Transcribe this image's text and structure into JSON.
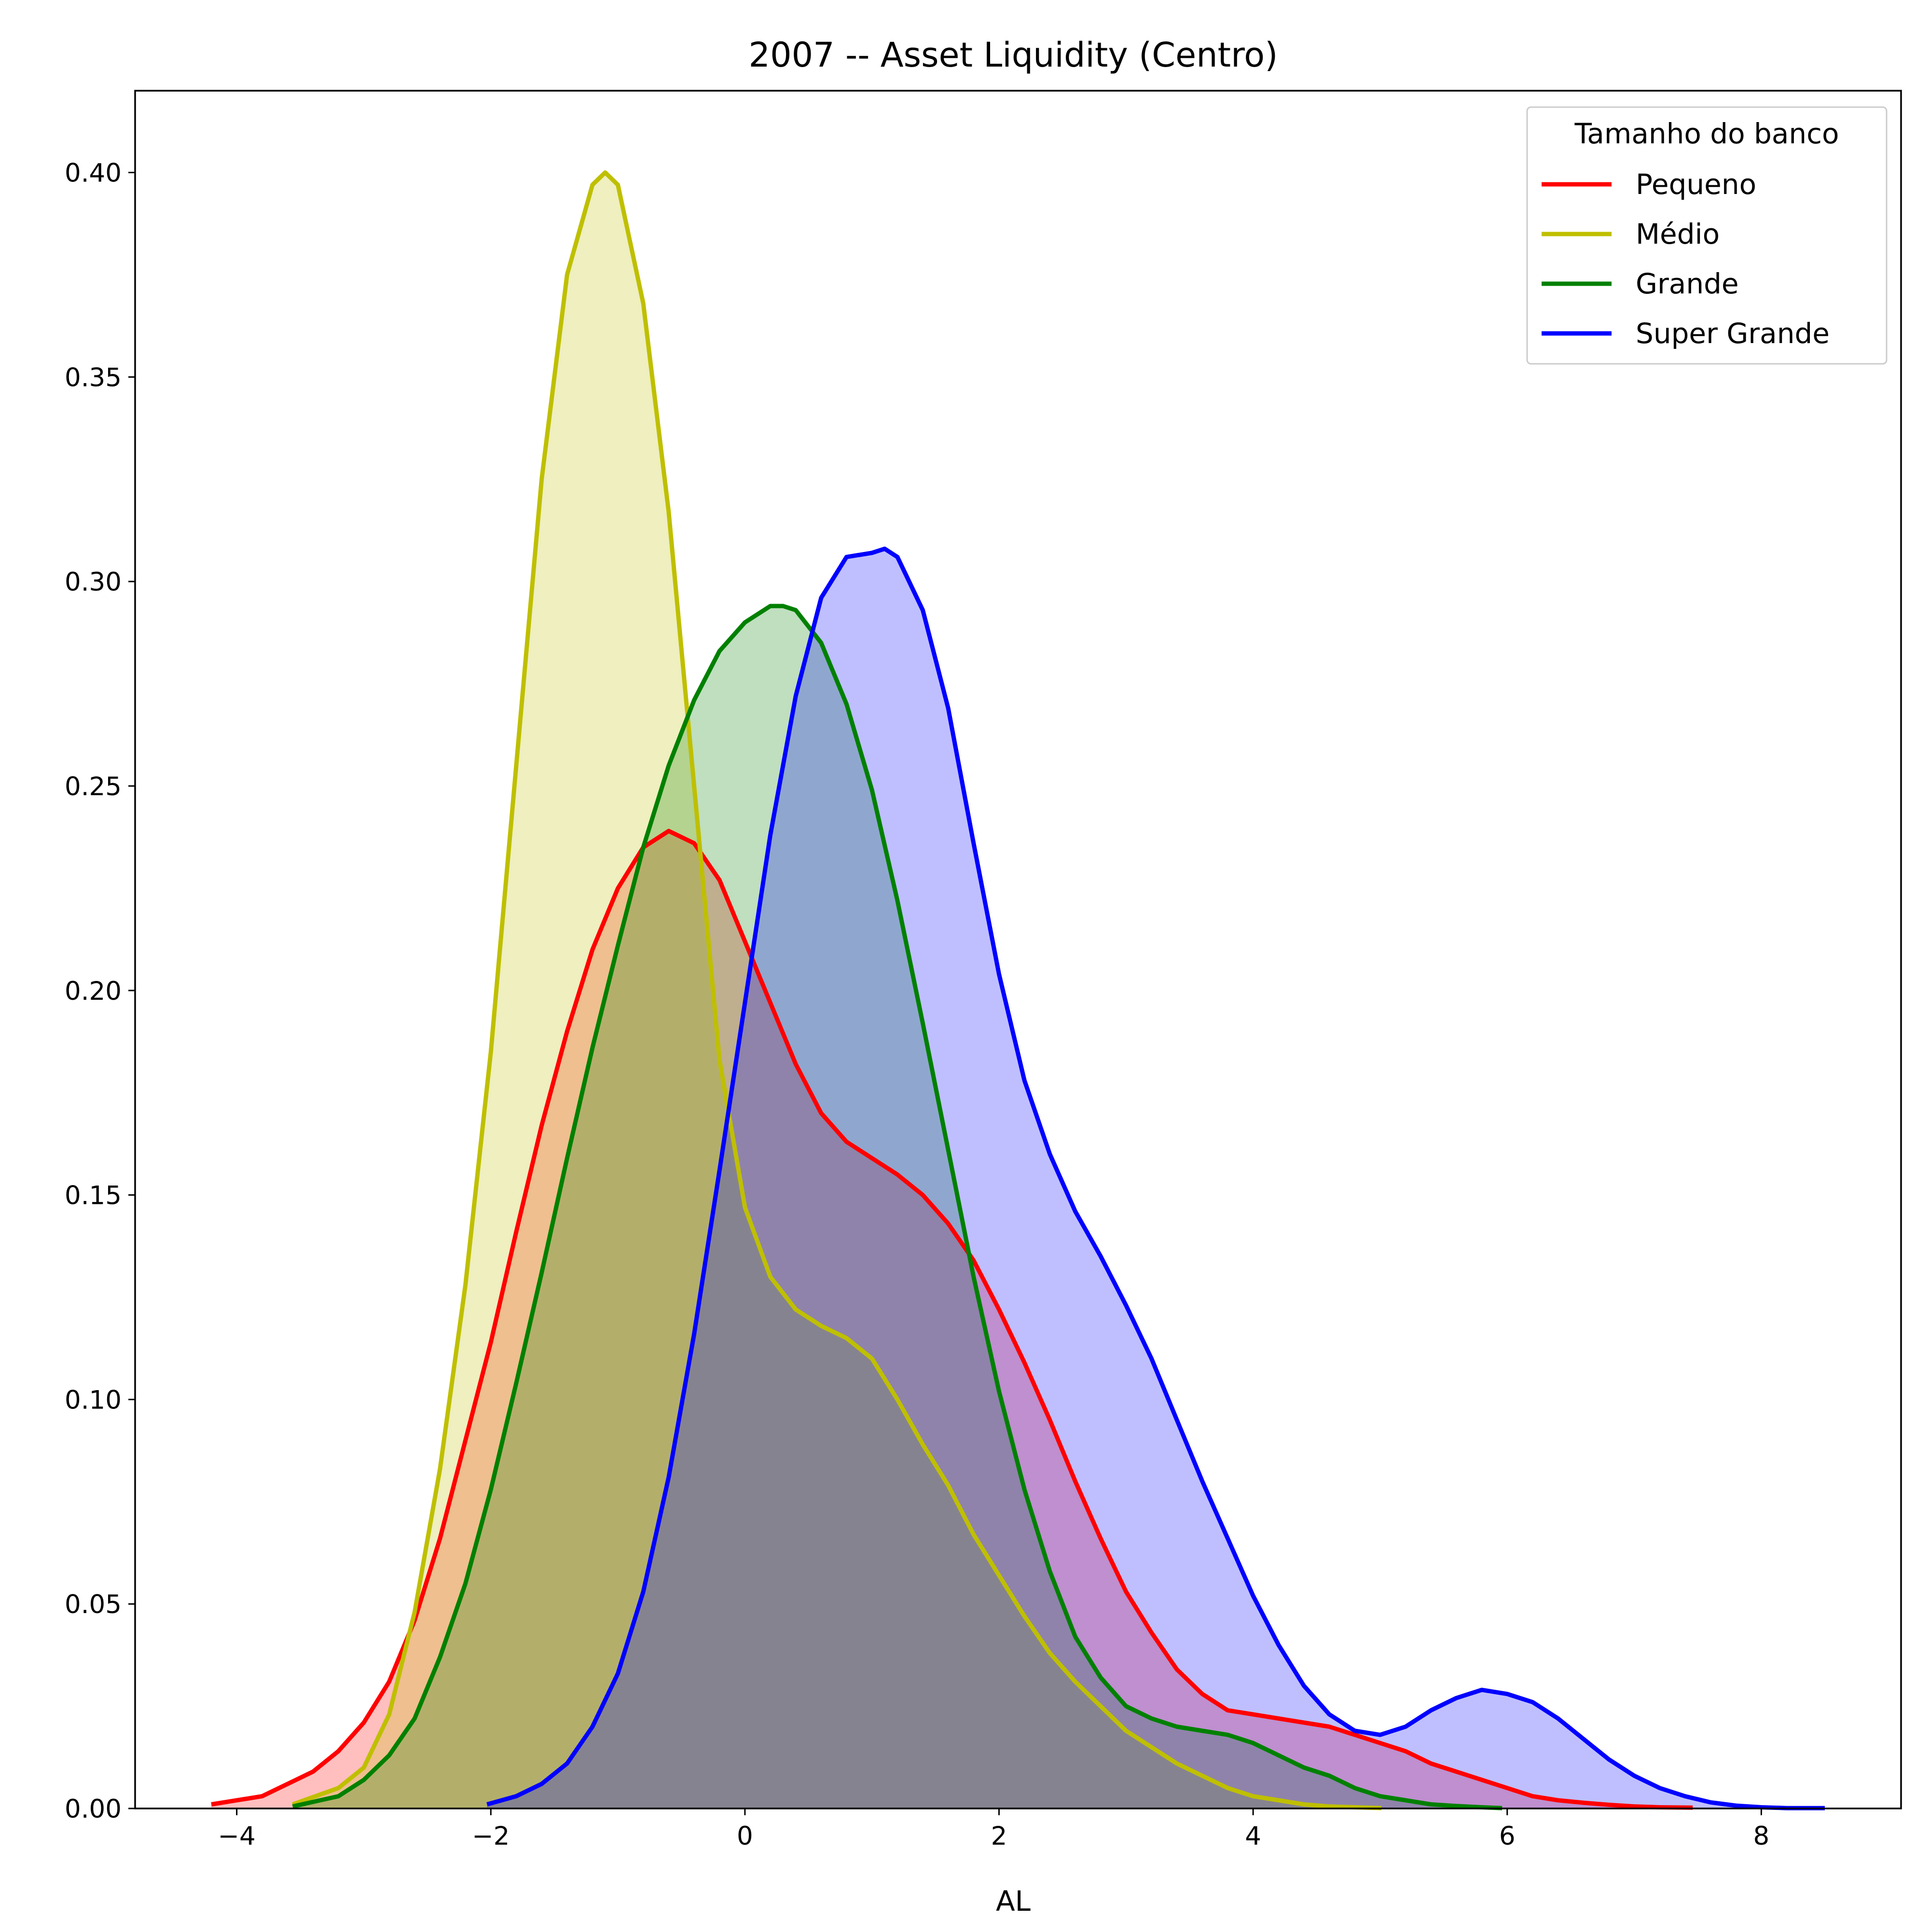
{
  "chart_data": {
    "type": "area",
    "title": "2007 -- Asset Liquidity (Centro)",
    "xlabel": "AL",
    "ylabel": "",
    "xlim": [
      -4.8,
      9.1
    ],
    "ylim": [
      0.0,
      0.42
    ],
    "x_ticks": [
      -4,
      -2,
      0,
      2,
      4,
      6,
      8
    ],
    "x_tick_labels": [
      "−4",
      "−2",
      "0",
      "2",
      "4",
      "6",
      "8"
    ],
    "y_ticks": [
      0.0,
      0.05,
      0.1,
      0.15,
      0.2,
      0.25,
      0.3,
      0.35,
      0.4
    ],
    "y_tick_labels": [
      "0.00",
      "0.05",
      "0.10",
      "0.15",
      "0.20",
      "0.25",
      "0.30",
      "0.35",
      "0.40"
    ],
    "grid": false,
    "legend": {
      "title": "Tamanho do banco",
      "placement": "top-right"
    },
    "series": [
      {
        "name": "Pequeno",
        "color": "#ff0000",
        "fill_color": "#ff0000",
        "fill_opacity": 0.25,
        "x": [
          -4.2,
          -3.8,
          -3.4,
          -3.2,
          -3.0,
          -2.8,
          -2.6,
          -2.4,
          -2.2,
          -2.0,
          -1.8,
          -1.6,
          -1.4,
          -1.2,
          -1.0,
          -0.8,
          -0.6,
          -0.4,
          -0.2,
          0.0,
          0.2,
          0.4,
          0.6,
          0.8,
          1.0,
          1.2,
          1.4,
          1.6,
          1.8,
          2.0,
          2.2,
          2.4,
          2.6,
          2.8,
          3.0,
          3.2,
          3.4,
          3.6,
          3.8,
          4.0,
          4.2,
          4.4,
          4.6,
          4.8,
          5.0,
          5.2,
          5.4,
          5.6,
          5.8,
          6.0,
          6.2,
          6.4,
          6.6,
          6.8,
          7.0,
          7.2,
          7.46
        ],
        "y": [
          0.001,
          0.003,
          0.009,
          0.014,
          0.021,
          0.031,
          0.046,
          0.066,
          0.09,
          0.114,
          0.141,
          0.167,
          0.19,
          0.21,
          0.225,
          0.235,
          0.239,
          0.236,
          0.227,
          0.212,
          0.197,
          0.182,
          0.17,
          0.163,
          0.159,
          0.155,
          0.15,
          0.143,
          0.134,
          0.122,
          0.109,
          0.095,
          0.08,
          0.066,
          0.053,
          0.043,
          0.034,
          0.028,
          0.024,
          0.023,
          0.022,
          0.021,
          0.02,
          0.018,
          0.016,
          0.014,
          0.011,
          0.009,
          0.007,
          0.005,
          0.003,
          0.002,
          0.0014,
          0.0009,
          0.0005,
          0.0003,
          0.0002
        ]
      },
      {
        "name": "Médio",
        "color": "#bfbf00",
        "fill_color": "#bfbf00",
        "fill_opacity": 0.25,
        "x": [
          -3.56,
          -3.2,
          -3.0,
          -2.8,
          -2.6,
          -2.4,
          -2.2,
          -2.0,
          -1.8,
          -1.6,
          -1.4,
          -1.2,
          -1.1,
          -1.0,
          -0.8,
          -0.6,
          -0.4,
          -0.2,
          0.0,
          0.2,
          0.4,
          0.6,
          0.8,
          1.0,
          1.2,
          1.4,
          1.6,
          1.8,
          2.0,
          2.2,
          2.4,
          2.6,
          2.8,
          3.0,
          3.2,
          3.4,
          3.6,
          3.8,
          4.0,
          4.2,
          4.4,
          4.6,
          4.8,
          5.01
        ],
        "y": [
          0.001,
          0.005,
          0.01,
          0.023,
          0.048,
          0.083,
          0.128,
          0.185,
          0.255,
          0.325,
          0.375,
          0.397,
          0.4,
          0.397,
          0.368,
          0.317,
          0.25,
          0.183,
          0.147,
          0.13,
          0.122,
          0.118,
          0.115,
          0.11,
          0.1,
          0.089,
          0.079,
          0.067,
          0.057,
          0.047,
          0.038,
          0.031,
          0.025,
          0.019,
          0.015,
          0.011,
          0.008,
          0.005,
          0.003,
          0.002,
          0.001,
          0.0005,
          0.0003,
          0.0001
        ]
      },
      {
        "name": "Grande",
        "color": "#008000",
        "fill_color": "#008000",
        "fill_opacity": 0.25,
        "x": [
          -3.56,
          -3.2,
          -3.0,
          -2.8,
          -2.6,
          -2.4,
          -2.2,
          -2.0,
          -1.8,
          -1.6,
          -1.4,
          -1.2,
          -1.0,
          -0.8,
          -0.6,
          -0.4,
          -0.2,
          0.0,
          0.2,
          0.3,
          0.4,
          0.6,
          0.8,
          1.0,
          1.2,
          1.4,
          1.6,
          1.8,
          2.0,
          2.2,
          2.4,
          2.6,
          2.8,
          3.0,
          3.2,
          3.4,
          3.6,
          3.8,
          4.0,
          4.2,
          4.4,
          4.6,
          4.8,
          5.0,
          5.2,
          5.4,
          5.6,
          5.8,
          5.96
        ],
        "y": [
          0.0005,
          0.003,
          0.007,
          0.013,
          0.022,
          0.037,
          0.055,
          0.078,
          0.104,
          0.131,
          0.159,
          0.186,
          0.211,
          0.235,
          0.255,
          0.271,
          0.283,
          0.29,
          0.294,
          0.294,
          0.293,
          0.285,
          0.27,
          0.249,
          0.222,
          0.192,
          0.161,
          0.13,
          0.102,
          0.078,
          0.058,
          0.042,
          0.032,
          0.025,
          0.022,
          0.02,
          0.019,
          0.018,
          0.016,
          0.013,
          0.01,
          0.008,
          0.005,
          0.003,
          0.002,
          0.001,
          0.0006,
          0.0003,
          0.0001
        ]
      },
      {
        "name": "Super Grande",
        "color": "#0000ff",
        "fill_color": "#0000ff",
        "fill_opacity": 0.25,
        "x": [
          -2.03,
          -1.8,
          -1.6,
          -1.4,
          -1.2,
          -1.0,
          -0.8,
          -0.6,
          -0.4,
          -0.2,
          0.0,
          0.2,
          0.4,
          0.6,
          0.8,
          1.0,
          1.1,
          1.2,
          1.4,
          1.6,
          1.8,
          2.0,
          2.2,
          2.4,
          2.6,
          2.8,
          3.0,
          3.2,
          3.4,
          3.6,
          3.8,
          4.0,
          4.2,
          4.4,
          4.6,
          4.8,
          5.0,
          5.2,
          5.4,
          5.6,
          5.8,
          6.0,
          6.2,
          6.4,
          6.6,
          6.8,
          7.0,
          7.2,
          7.4,
          7.6,
          7.8,
          8.0,
          8.2,
          8.5
        ],
        "y": [
          0.001,
          0.003,
          0.006,
          0.011,
          0.02,
          0.033,
          0.053,
          0.081,
          0.116,
          0.156,
          0.197,
          0.238,
          0.272,
          0.296,
          0.306,
          0.307,
          0.308,
          0.306,
          0.293,
          0.269,
          0.236,
          0.204,
          0.178,
          0.16,
          0.146,
          0.135,
          0.123,
          0.11,
          0.095,
          0.08,
          0.066,
          0.052,
          0.04,
          0.03,
          0.023,
          0.019,
          0.018,
          0.02,
          0.024,
          0.027,
          0.029,
          0.028,
          0.026,
          0.022,
          0.017,
          0.012,
          0.008,
          0.005,
          0.003,
          0.0015,
          0.0007,
          0.0003,
          0.0001,
          0.0001
        ]
      }
    ]
  }
}
